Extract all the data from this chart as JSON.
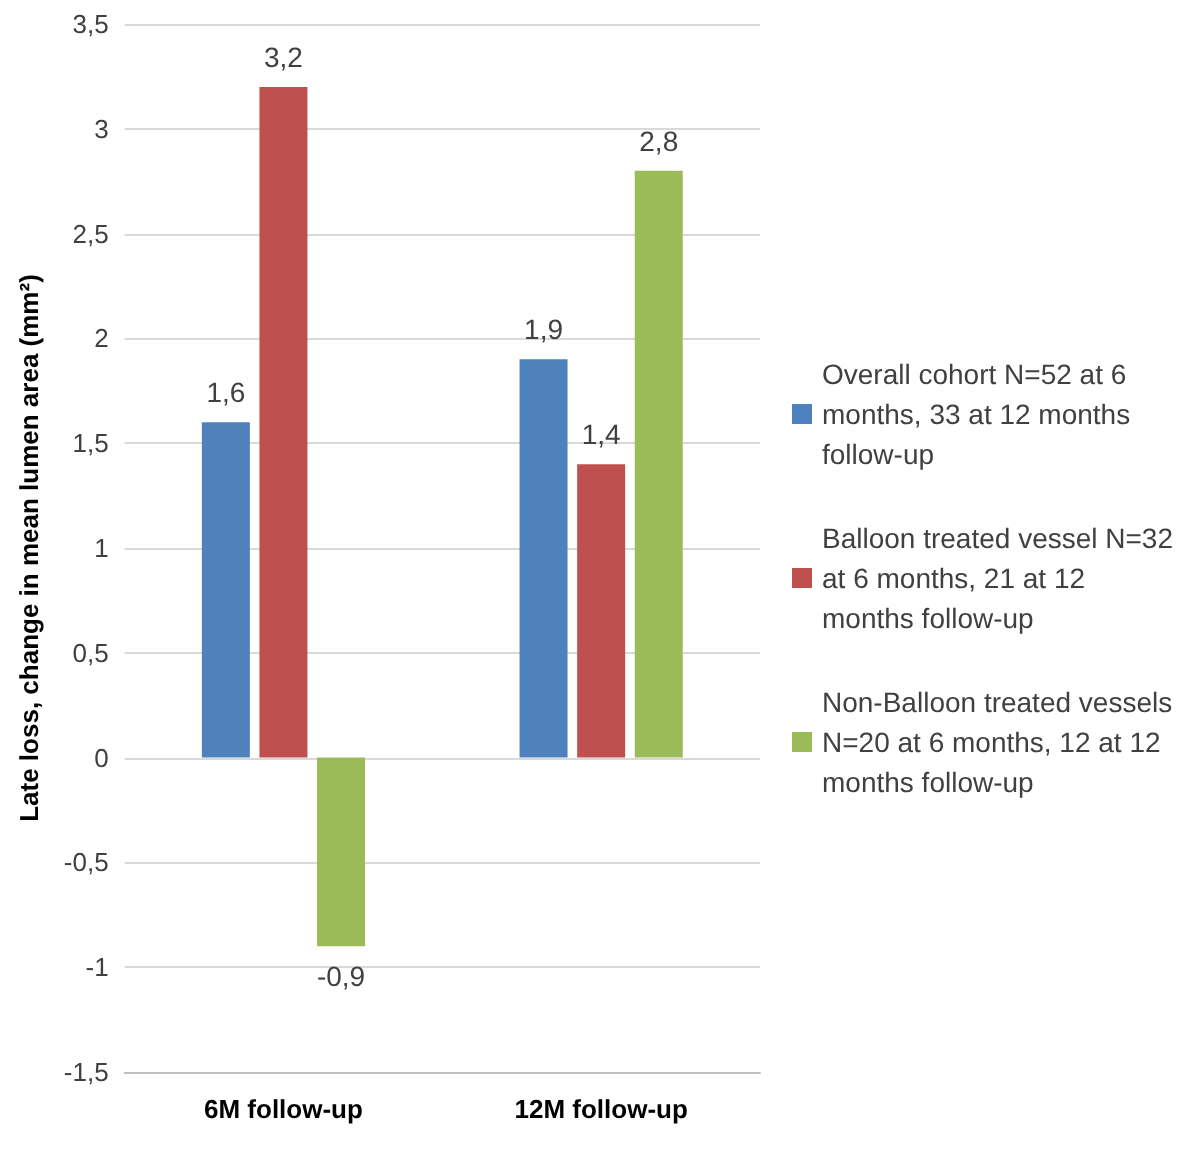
{
  "chart_data": {
    "type": "bar",
    "ylabel": "Late loss, change in mean lumen area (mm²)",
    "categories": [
      "6M follow-up",
      "12M follow-up"
    ],
    "series": [
      {
        "name": "Overall cohort N=52 at 6 months, 33 at 12 months follow-up",
        "color": "#4f81bd",
        "values": [
          1.6,
          1.9
        ],
        "value_labels": [
          "1,6",
          "1,9"
        ]
      },
      {
        "name": "Balloon treated vessel N=32 at 6 months, 21 at 12 months follow-up",
        "color": "#c0504d",
        "values": [
          3.2,
          1.4
        ],
        "value_labels": [
          "3,2",
          "1,4"
        ]
      },
      {
        "name": "Non-Balloon treated vessels N=20 at 6 months, 12 at 12 months follow-up",
        "color": "#9bbb59",
        "values": [
          -0.9,
          2.8
        ],
        "value_labels": [
          "-0,9",
          "2,8"
        ]
      }
    ],
    "ylim": [
      -1.5,
      3.5
    ],
    "yticks": [
      {
        "value": -1.5,
        "label": "-1,5"
      },
      -1,
      {
        "value": -0.5,
        "label": "-0,5"
      },
      0,
      {
        "value": 0.5,
        "label": "0,5"
      },
      1,
      {
        "value": 1.5,
        "label": "1,5"
      },
      2,
      {
        "value": 2.5,
        "label": "2,5"
      },
      3,
      {
        "value": 3.5,
        "label": "3,5"
      }
    ],
    "grid": "y",
    "legend": "right"
  }
}
